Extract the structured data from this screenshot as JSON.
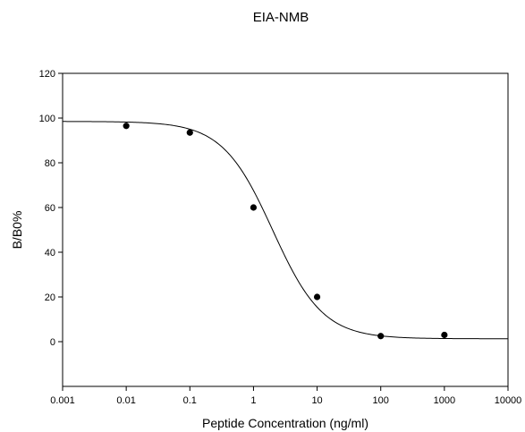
{
  "chart_data": {
    "type": "scatter",
    "title": "EIA-NMB",
    "xlabel": "Peptide Concentration (ng/ml)",
    "ylabel": "B/B0%",
    "x_scale": "log",
    "xlim": [
      0.001,
      10000
    ],
    "ylim": [
      -20,
      120
    ],
    "x_ticks": [
      0.001,
      0.01,
      0.1,
      1,
      10,
      100,
      1000,
      10000
    ],
    "x_tick_labels": [
      "0.001",
      "0.01",
      "0.1",
      "1",
      "10",
      "100",
      "1000",
      "10000"
    ],
    "y_ticks": [
      0,
      20,
      40,
      60,
      80,
      100,
      120
    ],
    "y_tick_labels": [
      "0",
      "20",
      "40",
      "60",
      "80",
      "100",
      "120"
    ],
    "grid": false,
    "legend": "none",
    "series": [
      {
        "points": [
          {
            "x": 0.01,
            "y": 96.5
          },
          {
            "x": 0.1,
            "y": 93.5
          },
          {
            "x": 1,
            "y": 60
          },
          {
            "x": 10,
            "y": 20
          },
          {
            "x": 100,
            "y": 2.5
          },
          {
            "x": 1000,
            "y": 3
          }
        ]
      }
    ],
    "fit_curve": {
      "model": "four-parameter logistic",
      "top": 98.5,
      "bottom": 1.3,
      "ec50": 2,
      "hill_slope": 1.1
    }
  }
}
